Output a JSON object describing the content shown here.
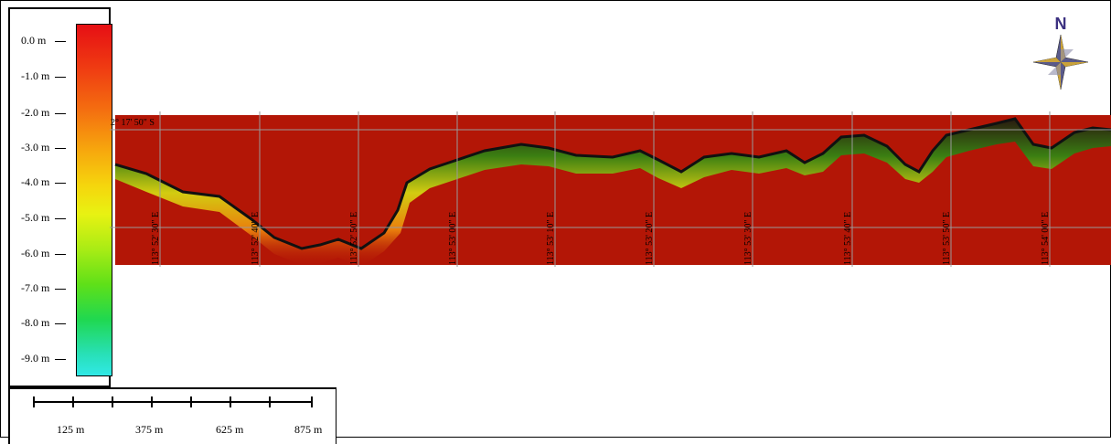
{
  "legend": {
    "labels": [
      "0.0 m",
      "-1.0 m",
      "-2.0 m",
      "-3.0 m",
      "-4.0 m",
      "-5.0 m",
      "-6.0 m",
      "-7.0 m",
      "-8.0 m",
      "-9.0 m"
    ]
  },
  "scale": {
    "labels": [
      "125 m",
      "375 m",
      "625 m",
      "875 m"
    ]
  },
  "map": {
    "lat_label": "2° 17' 50\" S",
    "lon_labels": [
      "113° 52' 30\" E",
      "113° 52' 40\" E",
      "113° 52' 50\" E",
      "113° 53' 00\" E",
      "113° 53' 10\" E",
      "113° 53' 20\" E",
      "113° 53' 30\" E",
      "113° 53' 40\" E",
      "113° 53' 50\" E",
      "113° 54' 00\" E"
    ],
    "background_color": "#b31606"
  },
  "compass": {
    "label": "N"
  }
}
